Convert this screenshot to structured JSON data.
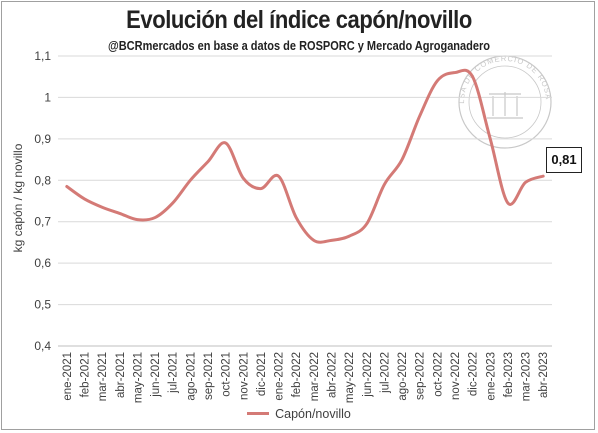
{
  "title": "Evolución del índice capón/novillo",
  "subtitle": "@BCRmercados en base a datos de ROSPORC y Mercado Agroganadero",
  "watermark": {
    "text": "BOLSA DE COMERCIO DE ROSARIO",
    "color": "#c8c8c8"
  },
  "callout": {
    "label": "0,81"
  },
  "legend": {
    "label": "Capón/novillo"
  },
  "colors": {
    "line": "#d47a76",
    "grid": "#d9d9d9",
    "text": "#404040"
  },
  "chart_data": {
    "type": "line",
    "title": "Evolución del índice capón/novillo",
    "ylabel": "kg capón / kg novillo",
    "xlabel": "",
    "ylim": [
      0.4,
      1.1
    ],
    "yticks": [
      0.4,
      0.5,
      0.6,
      0.7,
      0.8,
      0.9,
      1.0,
      1.1
    ],
    "ytick_labels": [
      "0,4",
      "0,5",
      "0,6",
      "0,7",
      "0,8",
      "0,9",
      "1",
      "1,1"
    ],
    "grid": "horizontal",
    "legend_position": "bottom",
    "categories": [
      "ene-2021",
      "feb-2021",
      "mar-2021",
      "abr-2021",
      "may-2021",
      "jun-2021",
      "jul-2021",
      "ago-2021",
      "sep-2021",
      "oct-2021",
      "nov-2021",
      "dic-2021",
      "ene-2022",
      "feb-2022",
      "mar-2022",
      "abr-2022",
      "may-2022",
      "jun-2022",
      "jul-2022",
      "ago-2022",
      "sep-2022",
      "oct-2022",
      "nov-2022",
      "dic-2022",
      "ene-2023",
      "feb-2023",
      "mar-2023",
      "abr-2023"
    ],
    "series": [
      {
        "name": "Capón/novillo",
        "values": [
          0.785,
          0.755,
          0.735,
          0.72,
          0.705,
          0.71,
          0.745,
          0.8,
          0.845,
          0.89,
          0.805,
          0.78,
          0.81,
          0.71,
          0.655,
          0.655,
          0.665,
          0.695,
          0.79,
          0.85,
          0.955,
          1.04,
          1.06,
          1.05,
          0.9,
          0.745,
          0.795,
          0.81
        ]
      }
    ]
  }
}
